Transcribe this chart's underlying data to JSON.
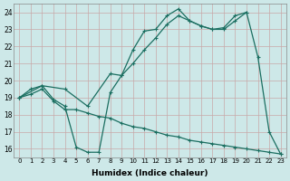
{
  "xlabel": "Humidex (Indice chaleur)",
  "bg_color": "#cde8e8",
  "line_color": "#1a6e60",
  "grid_color": "#c8a8a8",
  "xlim": [
    -0.5,
    23.5
  ],
  "ylim": [
    15.5,
    24.5
  ],
  "xticks": [
    0,
    1,
    2,
    3,
    4,
    5,
    6,
    7,
    8,
    9,
    10,
    11,
    12,
    13,
    14,
    15,
    16,
    17,
    18,
    19,
    20,
    21,
    22,
    23
  ],
  "yticks": [
    16,
    17,
    18,
    19,
    20,
    21,
    22,
    23,
    24
  ],
  "line1_x": [
    0,
    1,
    2,
    3,
    4,
    5,
    6,
    7,
    8,
    9,
    10,
    11,
    12,
    13,
    14,
    15,
    16,
    17,
    18,
    19,
    20,
    21,
    22,
    23
  ],
  "line1_y": [
    19.0,
    19.5,
    19.7,
    18.9,
    18.5,
    16.1,
    15.8,
    15.8,
    19.3,
    20.3,
    21.8,
    22.9,
    23.0,
    23.8,
    24.2,
    23.5,
    23.2,
    23.0,
    23.1,
    23.8,
    24.0,
    21.4,
    17.0,
    15.7
  ],
  "line2_x": [
    0,
    2,
    4,
    6,
    8,
    9,
    10,
    11,
    12,
    13,
    14,
    15,
    16,
    17,
    18,
    19,
    20
  ],
  "line2_y": [
    19.0,
    19.7,
    19.5,
    18.5,
    20.4,
    20.3,
    21.0,
    21.8,
    22.5,
    23.3,
    23.8,
    23.5,
    23.2,
    23.0,
    23.0,
    23.5,
    24.0
  ],
  "line3_x": [
    0,
    1,
    2,
    3,
    4,
    5,
    6,
    7,
    8,
    9,
    10,
    11,
    12,
    13,
    14,
    15,
    16,
    17,
    18,
    19,
    20,
    21,
    22,
    23
  ],
  "line3_y": [
    19.0,
    19.2,
    19.5,
    18.8,
    18.3,
    18.3,
    18.1,
    17.9,
    17.8,
    17.5,
    17.3,
    17.2,
    17.0,
    16.8,
    16.7,
    16.5,
    16.4,
    16.3,
    16.2,
    16.1,
    16.0,
    15.9,
    15.8,
    15.7
  ]
}
